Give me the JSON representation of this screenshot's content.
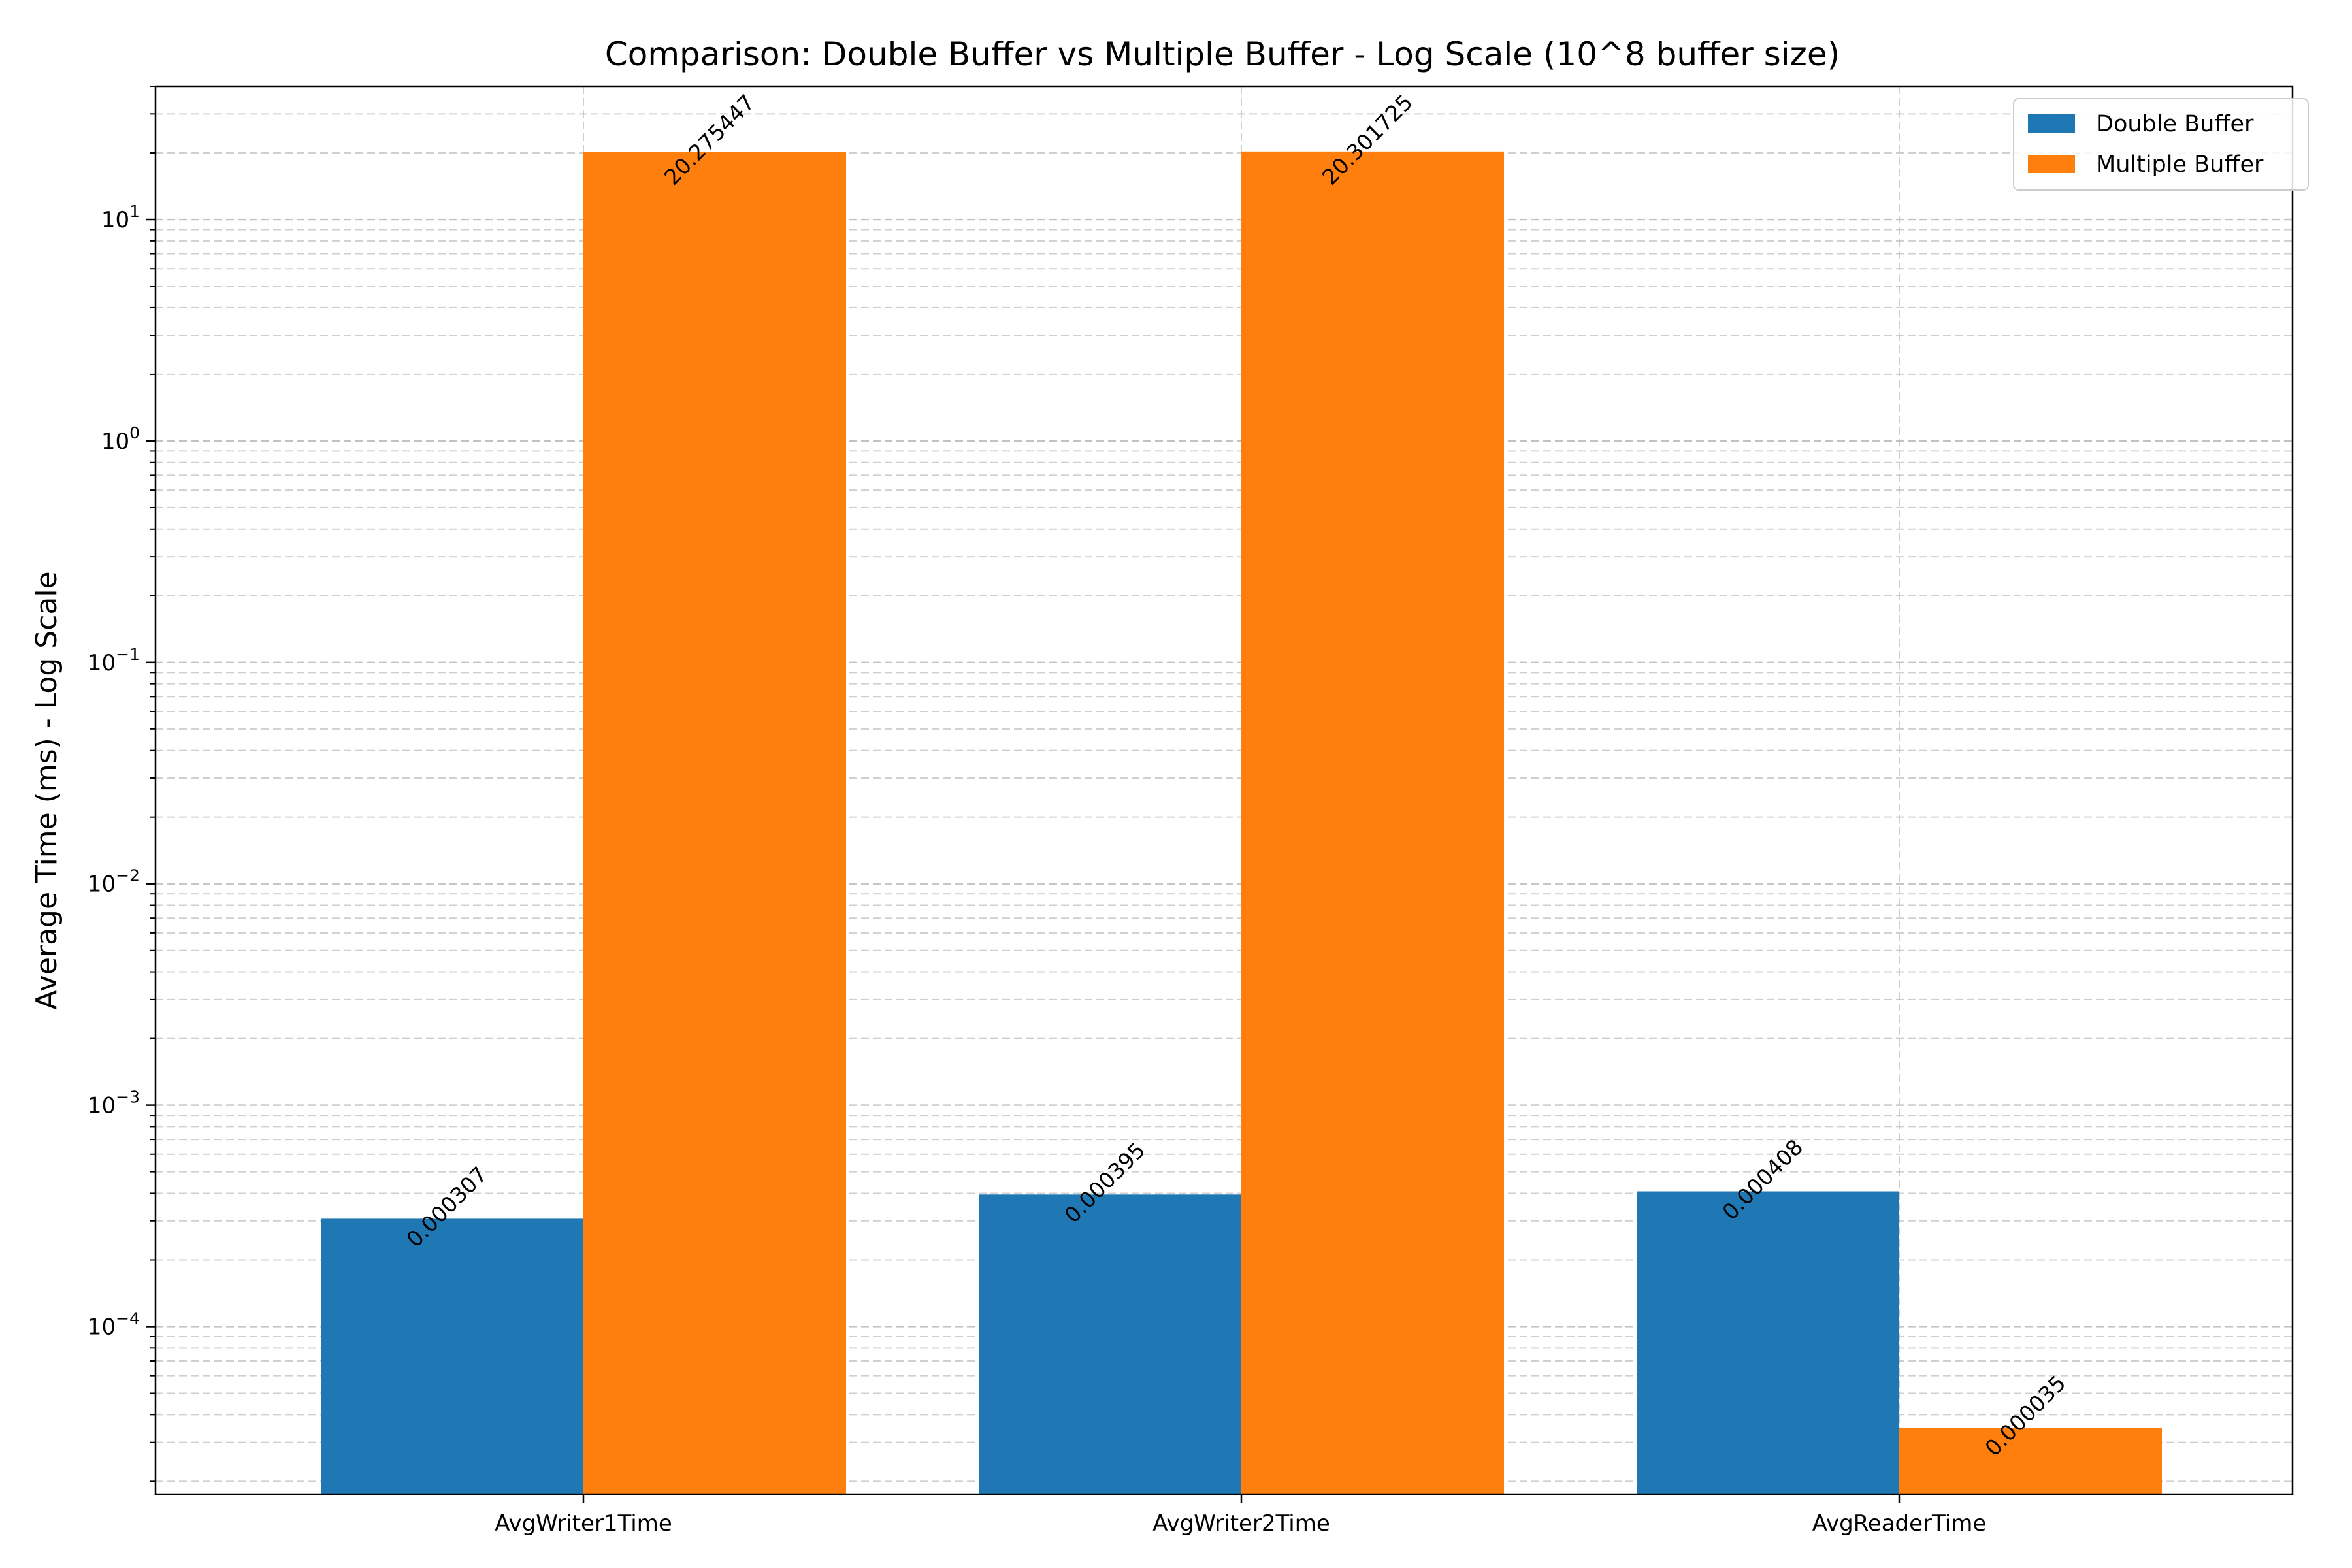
{
  "chart_data": {
    "type": "bar",
    "title": "Comparison: Double Buffer vs Multiple Buffer - Log Scale (10^8 buffer size)",
    "xlabel": "",
    "ylabel": "Average Time (ms) - Log Scale",
    "yscale": "log",
    "ylim": [
      1.75e-05,
      40
    ],
    "y_ticks": [
      {
        "value": 0.0001,
        "base": "10",
        "exponent": "−4"
      },
      {
        "value": 0.001,
        "base": "10",
        "exponent": "−3"
      },
      {
        "value": 0.01,
        "base": "10",
        "exponent": "−2"
      },
      {
        "value": 0.1,
        "base": "10",
        "exponent": "−1"
      },
      {
        "value": 1,
        "base": "10",
        "exponent": "0"
      },
      {
        "value": 10,
        "base": "10",
        "exponent": "1"
      }
    ],
    "categories": [
      "AvgWriter1Time",
      "AvgWriter2Time",
      "AvgReaderTime"
    ],
    "series": [
      {
        "name": "Double Buffer",
        "color": "#1f77b4",
        "values": [
          0.000307,
          0.000395,
          0.000408
        ],
        "labels": [
          "0.000307",
          "0.000395",
          "0.000408"
        ]
      },
      {
        "name": "Multiple Buffer",
        "color": "#ff7f0e",
        "values": [
          20.275447,
          20.301725,
          3.5e-05
        ],
        "labels": [
          "20.275447",
          "20.301725",
          "0.000035"
        ]
      }
    ],
    "grid": true,
    "grid_style": "dashed",
    "legend_position": "top-right"
  }
}
